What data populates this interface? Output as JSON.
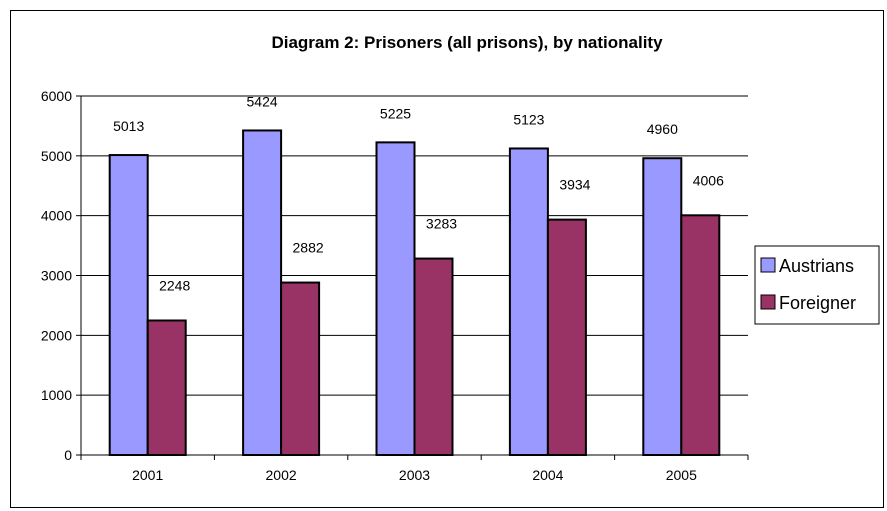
{
  "chart_data": {
    "type": "bar",
    "title": "Diagram 2: Prisoners (all prisons), by nationality",
    "xlabel": "",
    "ylabel": "",
    "categories": [
      "2001",
      "2002",
      "2003",
      "2004",
      "2005"
    ],
    "series": [
      {
        "name": "Austrians",
        "values": [
          5013,
          5424,
          5225,
          5123,
          4960
        ],
        "color": "#9999FF"
      },
      {
        "name": "Foreigner",
        "values": [
          2248,
          2882,
          3283,
          3934,
          4006
        ],
        "color": "#993366"
      }
    ],
    "ylim": [
      0,
      6000
    ],
    "yticks": [
      "0",
      "1000",
      "2000",
      "3000",
      "4000",
      "5000",
      "6000"
    ],
    "grid": true,
    "legend_position": "right",
    "data_labels": true
  }
}
